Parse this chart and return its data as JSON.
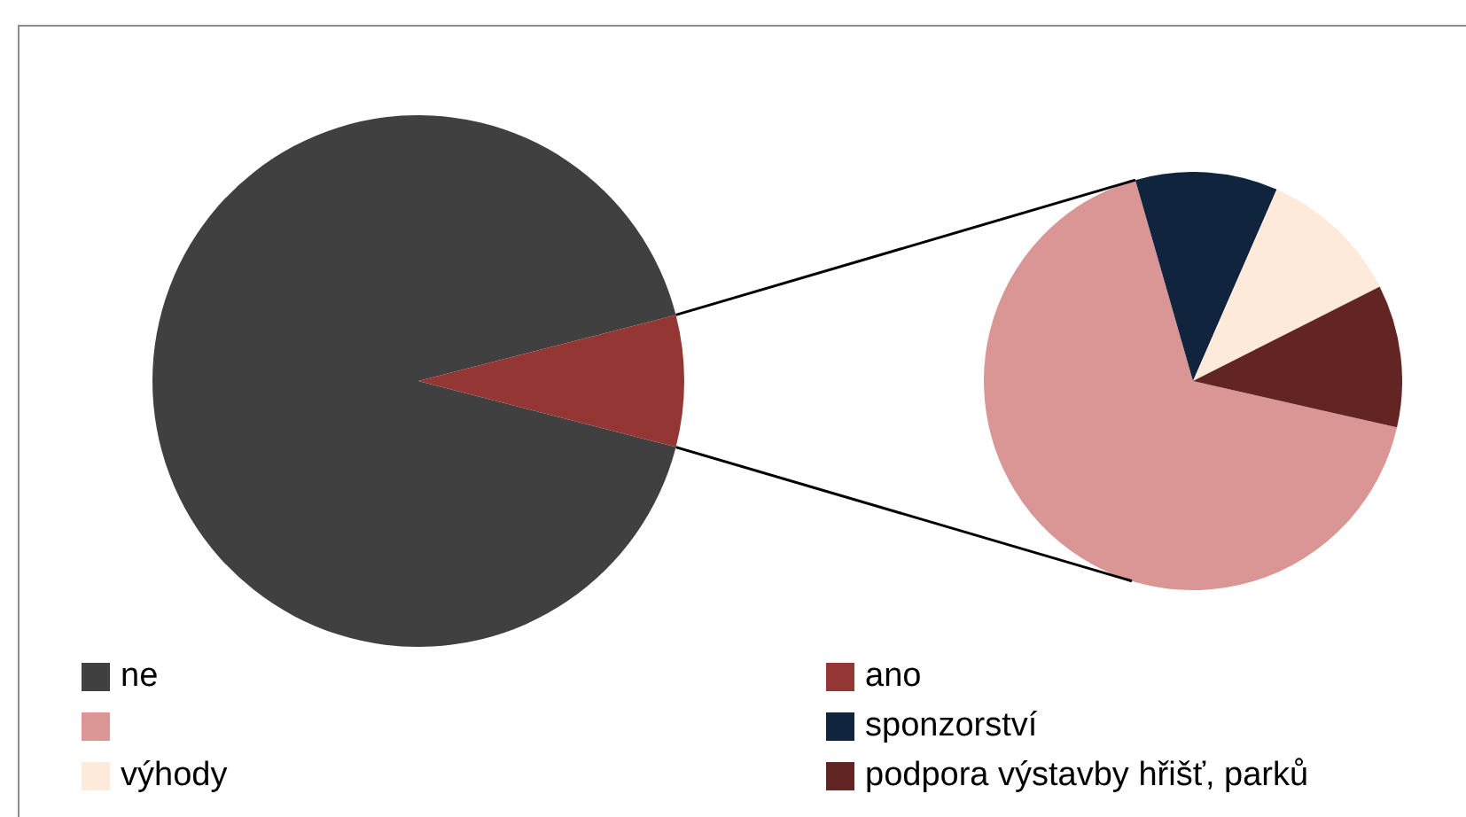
{
  "chart_data": [
    {
      "type": "pie",
      "categories": [
        "ne",
        "ano"
      ],
      "values": [
        92,
        8
      ],
      "colors": [
        "#404040",
        "#943634"
      ],
      "legend": "bottom"
    },
    {
      "type": "pie",
      "categories": [
        null,
        "sponzorství",
        "výhody",
        "podpora výstavby hřišť, parků"
      ],
      "values": [
        67,
        11,
        11,
        11
      ],
      "colors": [
        "#d99694",
        "#10243e",
        "#fdeada",
        "#632523"
      ],
      "legend": "bottom"
    }
  ]
}
